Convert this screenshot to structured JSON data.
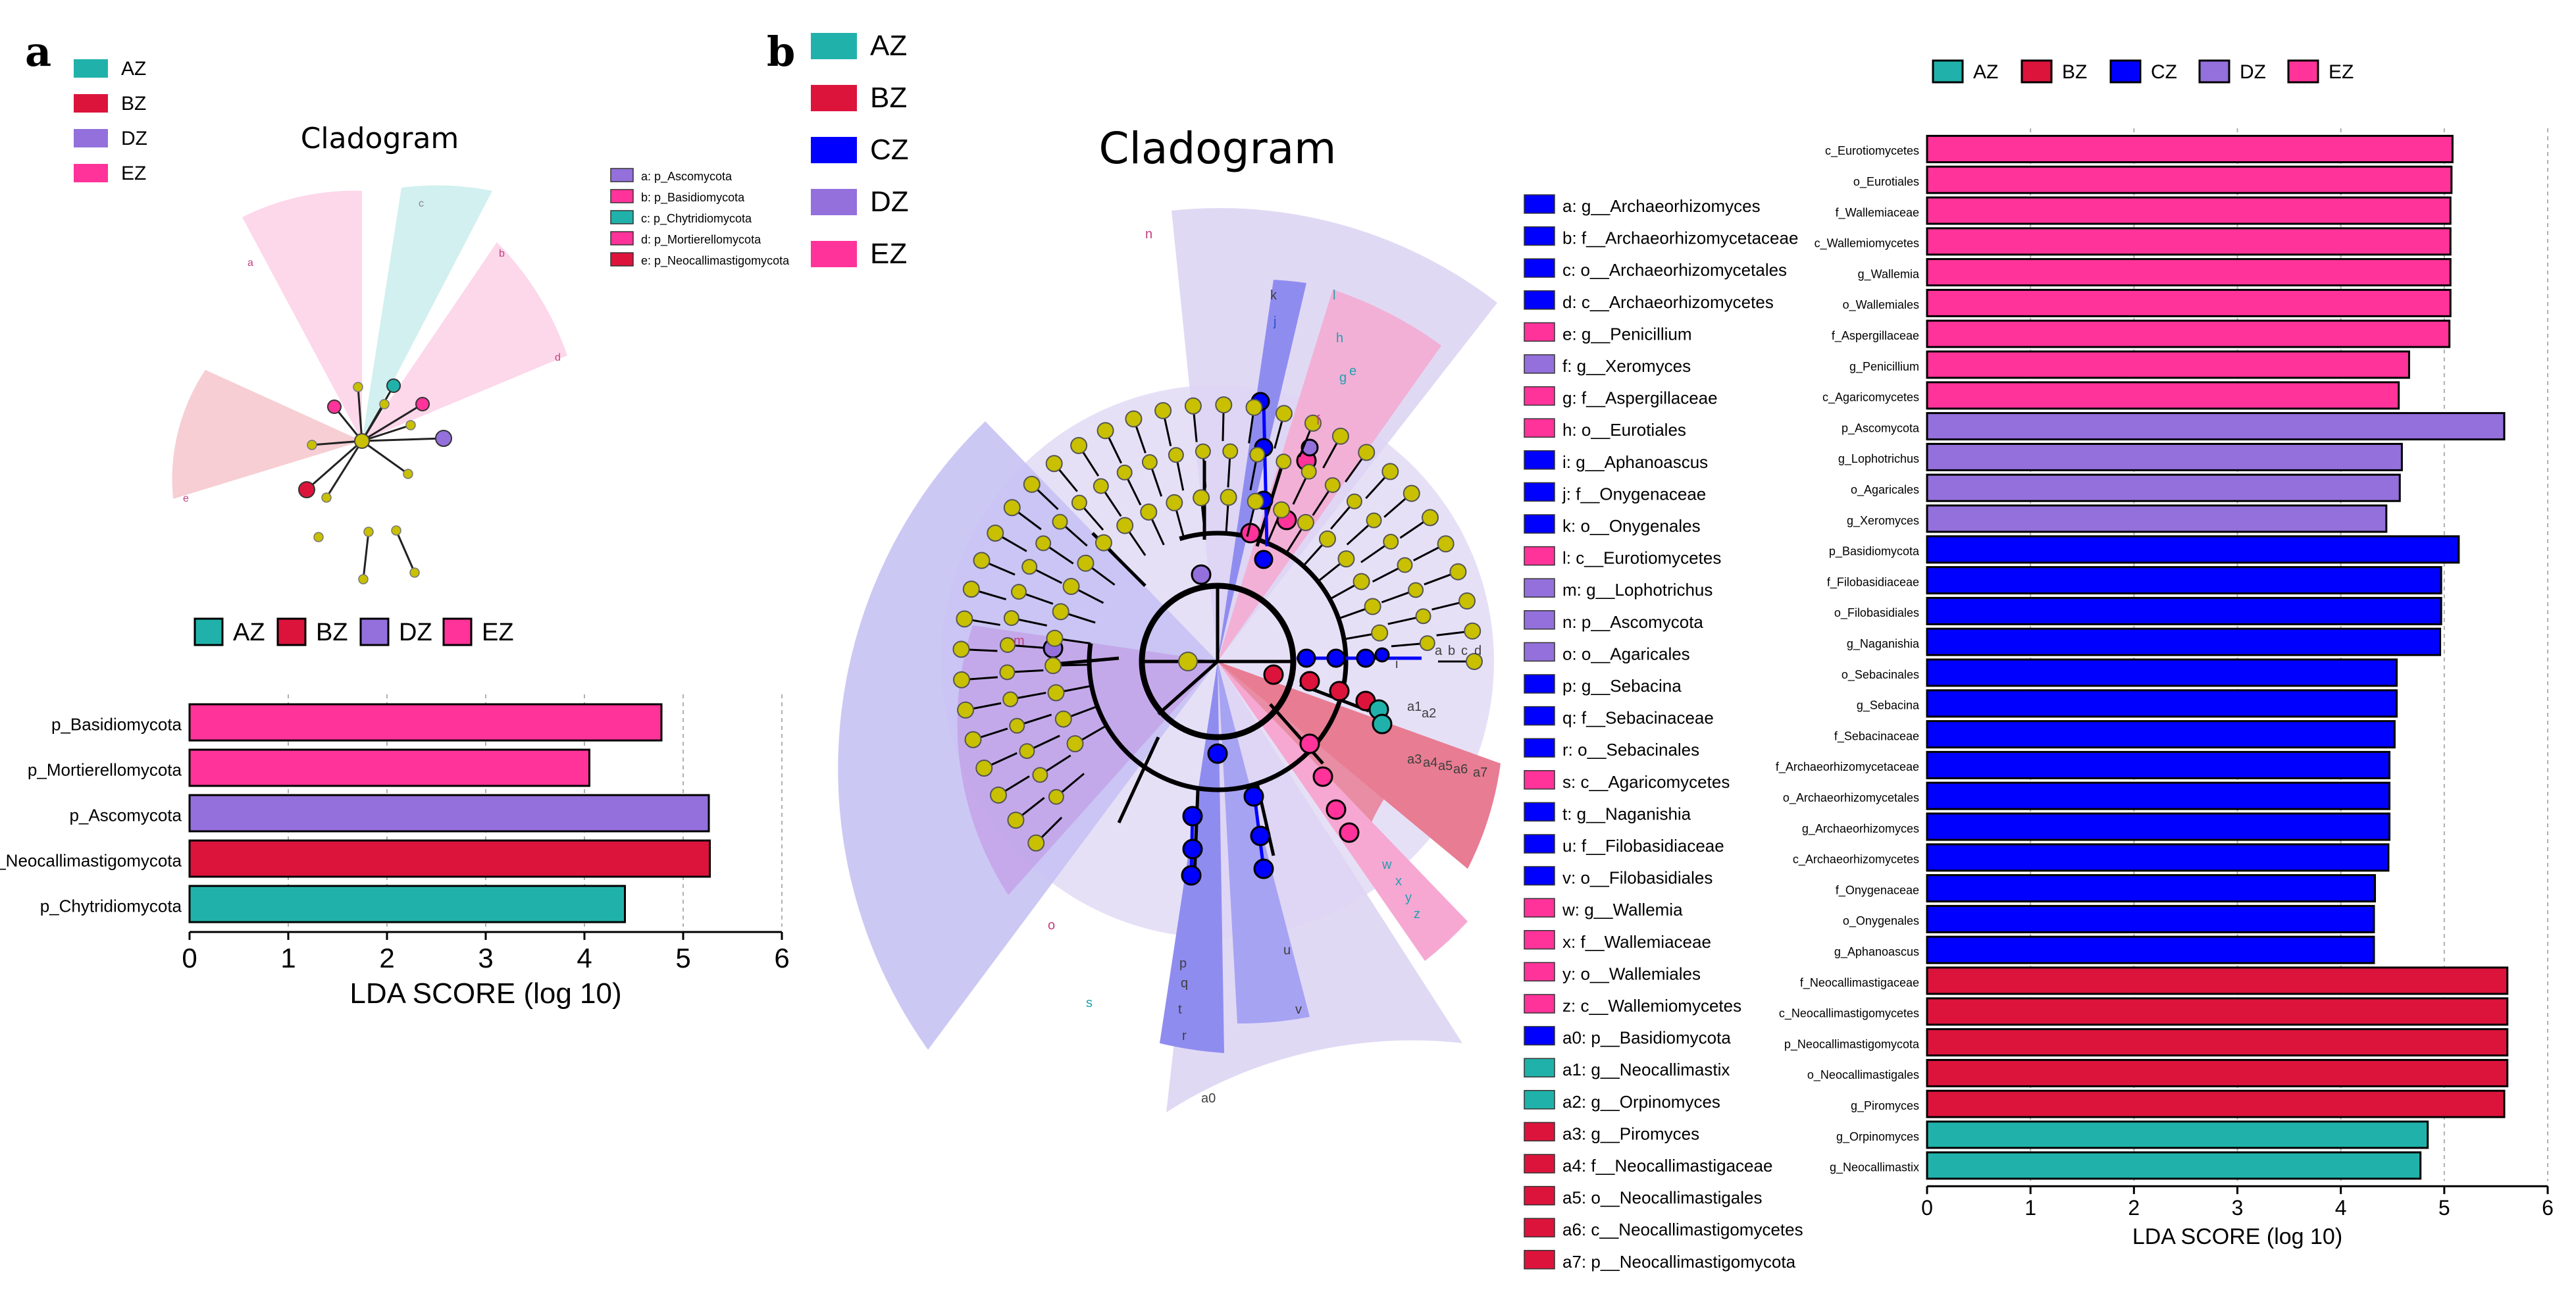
{
  "panels": {
    "a": "a",
    "b": "b"
  },
  "colors": {
    "AZ": "#20b2aa",
    "BZ": "#dc143c",
    "CZ": "#0000ff",
    "DZ": "#9370db",
    "EZ": "#ff3399"
  },
  "panel_a": {
    "legend": [
      {
        "group": "AZ",
        "color": "#20b2aa"
      },
      {
        "group": "BZ",
        "color": "#dc143c"
      },
      {
        "group": "DZ",
        "color": "#9370db"
      },
      {
        "group": "EZ",
        "color": "#ff3399"
      }
    ],
    "cladogram_title": "Cladogram",
    "key": [
      {
        "text": "a: p_Ascomycota",
        "color": "#9370db"
      },
      {
        "text": "b: p_Basidiomycota",
        "color": "#ff3399"
      },
      {
        "text": "c: p_Chytridiomycota",
        "color": "#20b2aa"
      },
      {
        "text": "d: p_Mortierellomycota",
        "color": "#ff3399"
      },
      {
        "text": "e: p_Neocallimastigomycota",
        "color": "#dc143c"
      }
    ],
    "sector_labels": [
      "a",
      "b",
      "c",
      "d",
      "e"
    ]
  },
  "panel_b": {
    "legend": [
      {
        "group": "AZ",
        "color": "#20b2aa"
      },
      {
        "group": "BZ",
        "color": "#dc143c"
      },
      {
        "group": "CZ",
        "color": "#0000ff"
      },
      {
        "group": "DZ",
        "color": "#9370db"
      },
      {
        "group": "EZ",
        "color": "#ff3399"
      }
    ],
    "cladogram_title": "Cladogram",
    "key": [
      {
        "text": "a: g__Archaeorhizomyces",
        "color": "#0000ff"
      },
      {
        "text": "b: f__Archaeorhizomycetaceae",
        "color": "#0000ff"
      },
      {
        "text": "c: o__Archaeorhizomycetales",
        "color": "#0000ff"
      },
      {
        "text": "d: c__Archaeorhizomycetes",
        "color": "#0000ff"
      },
      {
        "text": "e: g__Penicillium",
        "color": "#ff3399"
      },
      {
        "text": "f: g__Xeromyces",
        "color": "#9370db"
      },
      {
        "text": "g: f__Aspergillaceae",
        "color": "#ff3399"
      },
      {
        "text": "h: o__Eurotiales",
        "color": "#ff3399"
      },
      {
        "text": "i: g__Aphanoascus",
        "color": "#0000ff"
      },
      {
        "text": "j: f__Onygenaceae",
        "color": "#0000ff"
      },
      {
        "text": "k: o__Onygenales",
        "color": "#0000ff"
      },
      {
        "text": "l: c__Eurotiomycetes",
        "color": "#ff3399"
      },
      {
        "text": "m: g__Lophotrichus",
        "color": "#9370db"
      },
      {
        "text": "n: p__Ascomycota",
        "color": "#9370db"
      },
      {
        "text": "o: o__Agaricales",
        "color": "#9370db"
      },
      {
        "text": "p: g__Sebacina",
        "color": "#0000ff"
      },
      {
        "text": "q: f__Sebacinaceae",
        "color": "#0000ff"
      },
      {
        "text": "r: o__Sebacinales",
        "color": "#0000ff"
      },
      {
        "text": "s: c__Agaricomycetes",
        "color": "#ff3399"
      },
      {
        "text": "t: g__Naganishia",
        "color": "#0000ff"
      },
      {
        "text": "u: f__Filobasidiaceae",
        "color": "#0000ff"
      },
      {
        "text": "v: o__Filobasidiales",
        "color": "#0000ff"
      },
      {
        "text": "w: g__Wallemia",
        "color": "#ff3399"
      },
      {
        "text": "x: f__Wallemiaceae",
        "color": "#ff3399"
      },
      {
        "text": "y: o__Wallemiales",
        "color": "#ff3399"
      },
      {
        "text": "z: c__Wallemiomycetes",
        "color": "#ff3399"
      },
      {
        "text": "a0: p__Basidiomycota",
        "color": "#0000ff"
      },
      {
        "text": "a1: g__Neocallimastix",
        "color": "#20b2aa"
      },
      {
        "text": "a2: g__Orpinomyces",
        "color": "#20b2aa"
      },
      {
        "text": "a3: g__Piromyces",
        "color": "#dc143c"
      },
      {
        "text": "a4: f__Neocallimastigaceae",
        "color": "#dc143c"
      },
      {
        "text": "a5: o__Neocallimastigales",
        "color": "#dc143c"
      },
      {
        "text": "a6: c__Neocallimastigomycetes",
        "color": "#dc143c"
      },
      {
        "text": "a7: p__Neocallimastigomycota",
        "color": "#dc143c"
      }
    ],
    "sector_labels": [
      "n",
      "m",
      "o",
      "a0",
      "k",
      "j",
      "l",
      "h",
      "g",
      "f",
      "e",
      "a",
      "b",
      "c",
      "d",
      "a1",
      "a2",
      "a3",
      "a4",
      "a5",
      "a6",
      "a7",
      "w",
      "x",
      "y",
      "z",
      "u",
      "v",
      "t",
      "p",
      "q",
      "r",
      "s",
      "i"
    ]
  },
  "chart_data": [
    {
      "id": "a",
      "type": "bar",
      "orientation": "horizontal",
      "title": "",
      "xlabel": "LDA SCORE (log 10)",
      "ylabel": "",
      "xlim": [
        0,
        6
      ],
      "xticks": [
        0,
        1,
        2,
        3,
        4,
        5,
        6
      ],
      "grid": true,
      "legend": [
        "AZ",
        "BZ",
        "DZ",
        "EZ"
      ],
      "categories": [
        "p_Basidiomycota",
        "p_Mortierellomycota",
        "p_Ascomycota",
        "p_Neocallimastigomycota",
        "p_Chytridiomycota"
      ],
      "values": [
        4.78,
        4.05,
        5.26,
        5.27,
        4.41
      ],
      "groups": [
        "EZ",
        "EZ",
        "DZ",
        "BZ",
        "AZ"
      ]
    },
    {
      "id": "b",
      "type": "bar",
      "orientation": "horizontal",
      "title": "",
      "xlabel": "LDA SCORE (log 10)",
      "ylabel": "",
      "xlim": [
        0,
        6
      ],
      "xticks": [
        0,
        1,
        2,
        3,
        4,
        5,
        6
      ],
      "grid": true,
      "legend": [
        "AZ",
        "BZ",
        "CZ",
        "DZ",
        "EZ"
      ],
      "categories": [
        "c_Eurotiomycetes",
        "o_Eurotiales",
        "f_Wallemiaceae",
        "c_Wallemiomycetes",
        "g_Wallemia",
        "o_Wallemiales",
        "f_Aspergillaceae",
        "g_Penicillium",
        "c_Agaricomycetes",
        "p_Ascomycota",
        "g_Lophotrichus",
        "o_Agaricales",
        "g_Xeromyces",
        "p_Basidiomycota",
        "f_Filobasidiaceae",
        "o_Filobasidiales",
        "g_Naganishia",
        "o_Sebacinales",
        "g_Sebacina",
        "f_Sebacinaceae",
        "f_Archaeorhizomycetaceae",
        "o_Archaeorhizomycetales",
        "g_Archaeorhizomyces",
        "c_Archaeorhizomycetes",
        "f_Onygenaceae",
        "o_Onygenales",
        "g_Aphanoascus",
        "f_Neocallimastigaceae",
        "c_Neocallimastigomycetes",
        "p_Neocallimastigomycota",
        "o_Neocallimastigales",
        "g_Piromyces",
        "g_Orpinomyces",
        "g_Neocallimastix"
      ],
      "values": [
        5.08,
        5.07,
        5.06,
        5.06,
        5.06,
        5.06,
        5.05,
        4.66,
        4.56,
        5.58,
        4.59,
        4.57,
        4.44,
        5.14,
        4.97,
        4.97,
        4.96,
        4.54,
        4.54,
        4.52,
        4.47,
        4.47,
        4.47,
        4.46,
        4.33,
        4.32,
        4.32,
        5.61,
        5.61,
        5.61,
        5.61,
        5.58,
        4.84,
        4.77
      ],
      "groups": [
        "EZ",
        "EZ",
        "EZ",
        "EZ",
        "EZ",
        "EZ",
        "EZ",
        "EZ",
        "EZ",
        "DZ",
        "DZ",
        "DZ",
        "DZ",
        "CZ",
        "CZ",
        "CZ",
        "CZ",
        "CZ",
        "CZ",
        "CZ",
        "CZ",
        "CZ",
        "CZ",
        "CZ",
        "CZ",
        "CZ",
        "CZ",
        "BZ",
        "BZ",
        "BZ",
        "BZ",
        "BZ",
        "AZ",
        "AZ"
      ]
    }
  ]
}
